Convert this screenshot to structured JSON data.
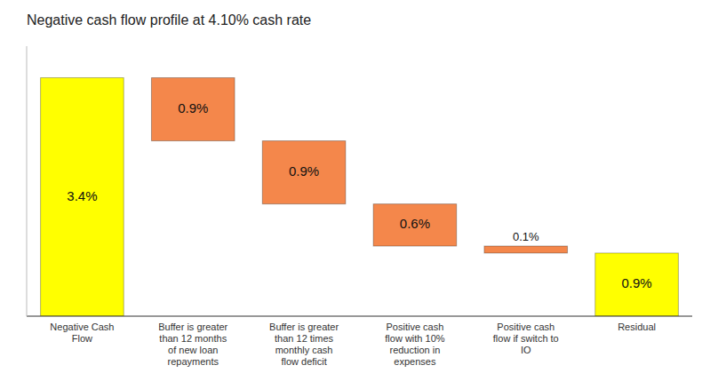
{
  "chart_data": {
    "type": "bar",
    "title": "Negative cash flow profile at 4.10% cash rate",
    "categories": [
      "Negative Cash\nFlow",
      "Buffer is greater\nthan 12 months\nof new loan\nrepayments",
      "Buffer is greater\nthan 12 times\nmonthly cash\nflow deficit",
      "Positive cash\nflow with 10%\nreduction in\nexpenses",
      "Positive cash\nflow if switch to\nIO",
      "Residual"
    ],
    "values": [
      3.4,
      0.9,
      0.9,
      0.6,
      0.1,
      0.9
    ],
    "bottoms": [
      0.0,
      2.5,
      1.6,
      1.0,
      0.9,
      0.0
    ],
    "value_labels": [
      "3.4%",
      "0.9%",
      "0.9%",
      "0.6%",
      "0.1%",
      "0.9%"
    ],
    "colors": [
      "#FFFF00",
      "#F4874B",
      "#F4874B",
      "#F4874B",
      "#F4874B",
      "#FFFF00"
    ],
    "data_labels": true,
    "ylim": [
      0,
      3.85
    ],
    "tick_labels": "x",
    "grid": false
  }
}
